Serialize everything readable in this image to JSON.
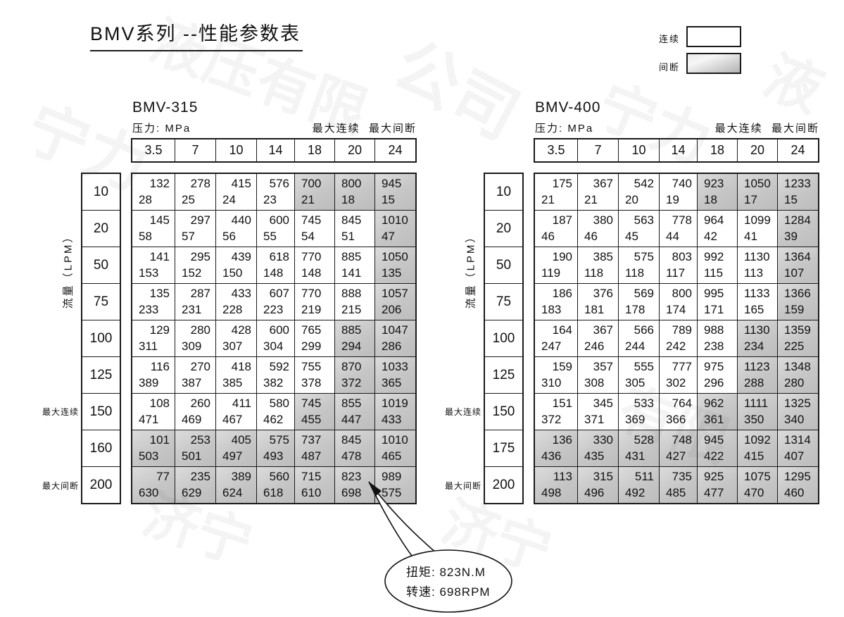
{
  "title": "BMV系列 --性能参数表",
  "legend": {
    "continuous_label": "连续",
    "intermittent_label": "间断"
  },
  "callout": {
    "line1": "扭矩: 823N.M",
    "line2": "转速: 698RPM"
  },
  "watermarks": [
    "宁力",
    "液压有限",
    "公司",
    "液",
    "宁力",
    "济宁",
    "济宁",
    "有限"
  ],
  "tables": [
    {
      "name": "BMV-315",
      "pressure_label": "压力: MPa",
      "header_right": "最大连续  最大间断",
      "flow_axis_label": "流量（LPM）",
      "side_cont_label": "最大连续",
      "side_int_label": "最大间断",
      "side_cont_row": 6,
      "side_int_row": 8,
      "pressures": [
        "3.5",
        "7",
        "10",
        "14",
        "18",
        "20",
        "24"
      ],
      "rows": [
        {
          "flow": "10",
          "torque": [
            132,
            278,
            415,
            576,
            700,
            800,
            945
          ],
          "speed": [
            28,
            25,
            24,
            23,
            21,
            18,
            15
          ],
          "shaded": [
            0,
            0,
            0,
            0,
            1,
            1,
            1
          ]
        },
        {
          "flow": "20",
          "torque": [
            145,
            297,
            440,
            600,
            745,
            845,
            1010
          ],
          "speed": [
            58,
            57,
            56,
            55,
            54,
            51,
            47
          ],
          "shaded": [
            0,
            0,
            0,
            0,
            0,
            0,
            1
          ]
        },
        {
          "flow": "50",
          "torque": [
            141,
            295,
            439,
            618,
            770,
            885,
            1050
          ],
          "speed": [
            153,
            152,
            150,
            148,
            148,
            141,
            135
          ],
          "shaded": [
            0,
            0,
            0,
            0,
            0,
            0,
            1
          ]
        },
        {
          "flow": "75",
          "torque": [
            135,
            287,
            433,
            607,
            770,
            888,
            1057
          ],
          "speed": [
            233,
            231,
            228,
            223,
            219,
            215,
            206
          ],
          "shaded": [
            0,
            0,
            0,
            0,
            0,
            0,
            1
          ]
        },
        {
          "flow": "100",
          "torque": [
            129,
            280,
            428,
            600,
            765,
            885,
            1047
          ],
          "speed": [
            311,
            309,
            307,
            304,
            299,
            294,
            286
          ],
          "shaded": [
            0,
            0,
            0,
            0,
            0,
            1,
            1
          ]
        },
        {
          "flow": "125",
          "torque": [
            116,
            270,
            418,
            592,
            755,
            870,
            1033
          ],
          "speed": [
            389,
            387,
            385,
            382,
            378,
            372,
            365
          ],
          "shaded": [
            0,
            0,
            0,
            0,
            0,
            1,
            1
          ]
        },
        {
          "flow": "150",
          "torque": [
            108,
            260,
            411,
            580,
            745,
            855,
            1019
          ],
          "speed": [
            471,
            469,
            467,
            462,
            455,
            447,
            433
          ],
          "shaded": [
            0,
            0,
            0,
            0,
            1,
            1,
            1
          ]
        },
        {
          "flow": "160",
          "torque": [
            101,
            253,
            405,
            575,
            737,
            845,
            1010
          ],
          "speed": [
            503,
            501,
            497,
            493,
            487,
            478,
            465
          ],
          "shaded": [
            1,
            1,
            1,
            1,
            1,
            1,
            1
          ]
        },
        {
          "flow": "200",
          "torque": [
            77,
            235,
            389,
            560,
            715,
            823,
            989
          ],
          "speed": [
            630,
            629,
            624,
            618,
            610,
            698,
            575
          ],
          "shaded": [
            1,
            1,
            1,
            1,
            1,
            1,
            1
          ]
        }
      ]
    },
    {
      "name": "BMV-400",
      "pressure_label": "压力: MPa",
      "header_right": "最大连续  最大间断",
      "flow_axis_label": "流量（LPM）",
      "side_cont_label": "最大连续",
      "side_int_label": "最大间断",
      "side_cont_row": 6,
      "side_int_row": 8,
      "pressures": [
        "3.5",
        "7",
        "10",
        "14",
        "18",
        "20",
        "24"
      ],
      "rows": [
        {
          "flow": "10",
          "torque": [
            175,
            367,
            542,
            740,
            923,
            1050,
            1233
          ],
          "speed": [
            21,
            21,
            20,
            19,
            18,
            17,
            15
          ],
          "shaded": [
            0,
            0,
            0,
            0,
            1,
            1,
            1
          ]
        },
        {
          "flow": "20",
          "torque": [
            187,
            380,
            563,
            778,
            964,
            1099,
            1284
          ],
          "speed": [
            46,
            46,
            45,
            44,
            42,
            41,
            39
          ],
          "shaded": [
            0,
            0,
            0,
            0,
            0,
            0,
            1
          ]
        },
        {
          "flow": "50",
          "torque": [
            190,
            385,
            575,
            803,
            992,
            1130,
            1364
          ],
          "speed": [
            119,
            118,
            118,
            117,
            115,
            113,
            107
          ],
          "shaded": [
            0,
            0,
            0,
            0,
            0,
            0,
            1
          ]
        },
        {
          "flow": "75",
          "torque": [
            186,
            376,
            569,
            800,
            995,
            1133,
            1366
          ],
          "speed": [
            183,
            181,
            178,
            174,
            171,
            165,
            159
          ],
          "shaded": [
            0,
            0,
            0,
            0,
            0,
            0,
            1
          ]
        },
        {
          "flow": "100",
          "torque": [
            164,
            367,
            566,
            789,
            988,
            1130,
            1359
          ],
          "speed": [
            247,
            246,
            244,
            242,
            238,
            234,
            225
          ],
          "shaded": [
            0,
            0,
            0,
            0,
            0,
            1,
            1
          ]
        },
        {
          "flow": "125",
          "torque": [
            159,
            357,
            555,
            777,
            975,
            1123,
            1348
          ],
          "speed": [
            310,
            308,
            305,
            302,
            296,
            288,
            280
          ],
          "shaded": [
            0,
            0,
            0,
            0,
            0,
            1,
            1
          ]
        },
        {
          "flow": "150",
          "torque": [
            151,
            345,
            533,
            764,
            962,
            1111,
            1325
          ],
          "speed": [
            372,
            371,
            369,
            366,
            361,
            350,
            340
          ],
          "shaded": [
            0,
            0,
            0,
            0,
            1,
            1,
            1
          ]
        },
        {
          "flow": "175",
          "torque": [
            136,
            330,
            528,
            748,
            945,
            1092,
            1314
          ],
          "speed": [
            436,
            435,
            431,
            427,
            422,
            415,
            407
          ],
          "shaded": [
            1,
            1,
            1,
            1,
            1,
            1,
            1
          ]
        },
        {
          "flow": "200",
          "torque": [
            113,
            315,
            511,
            735,
            925,
            1075,
            1295
          ],
          "speed": [
            498,
            496,
            492,
            485,
            477,
            470,
            460
          ],
          "shaded": [
            1,
            1,
            1,
            1,
            1,
            1,
            1
          ]
        }
      ]
    }
  ]
}
